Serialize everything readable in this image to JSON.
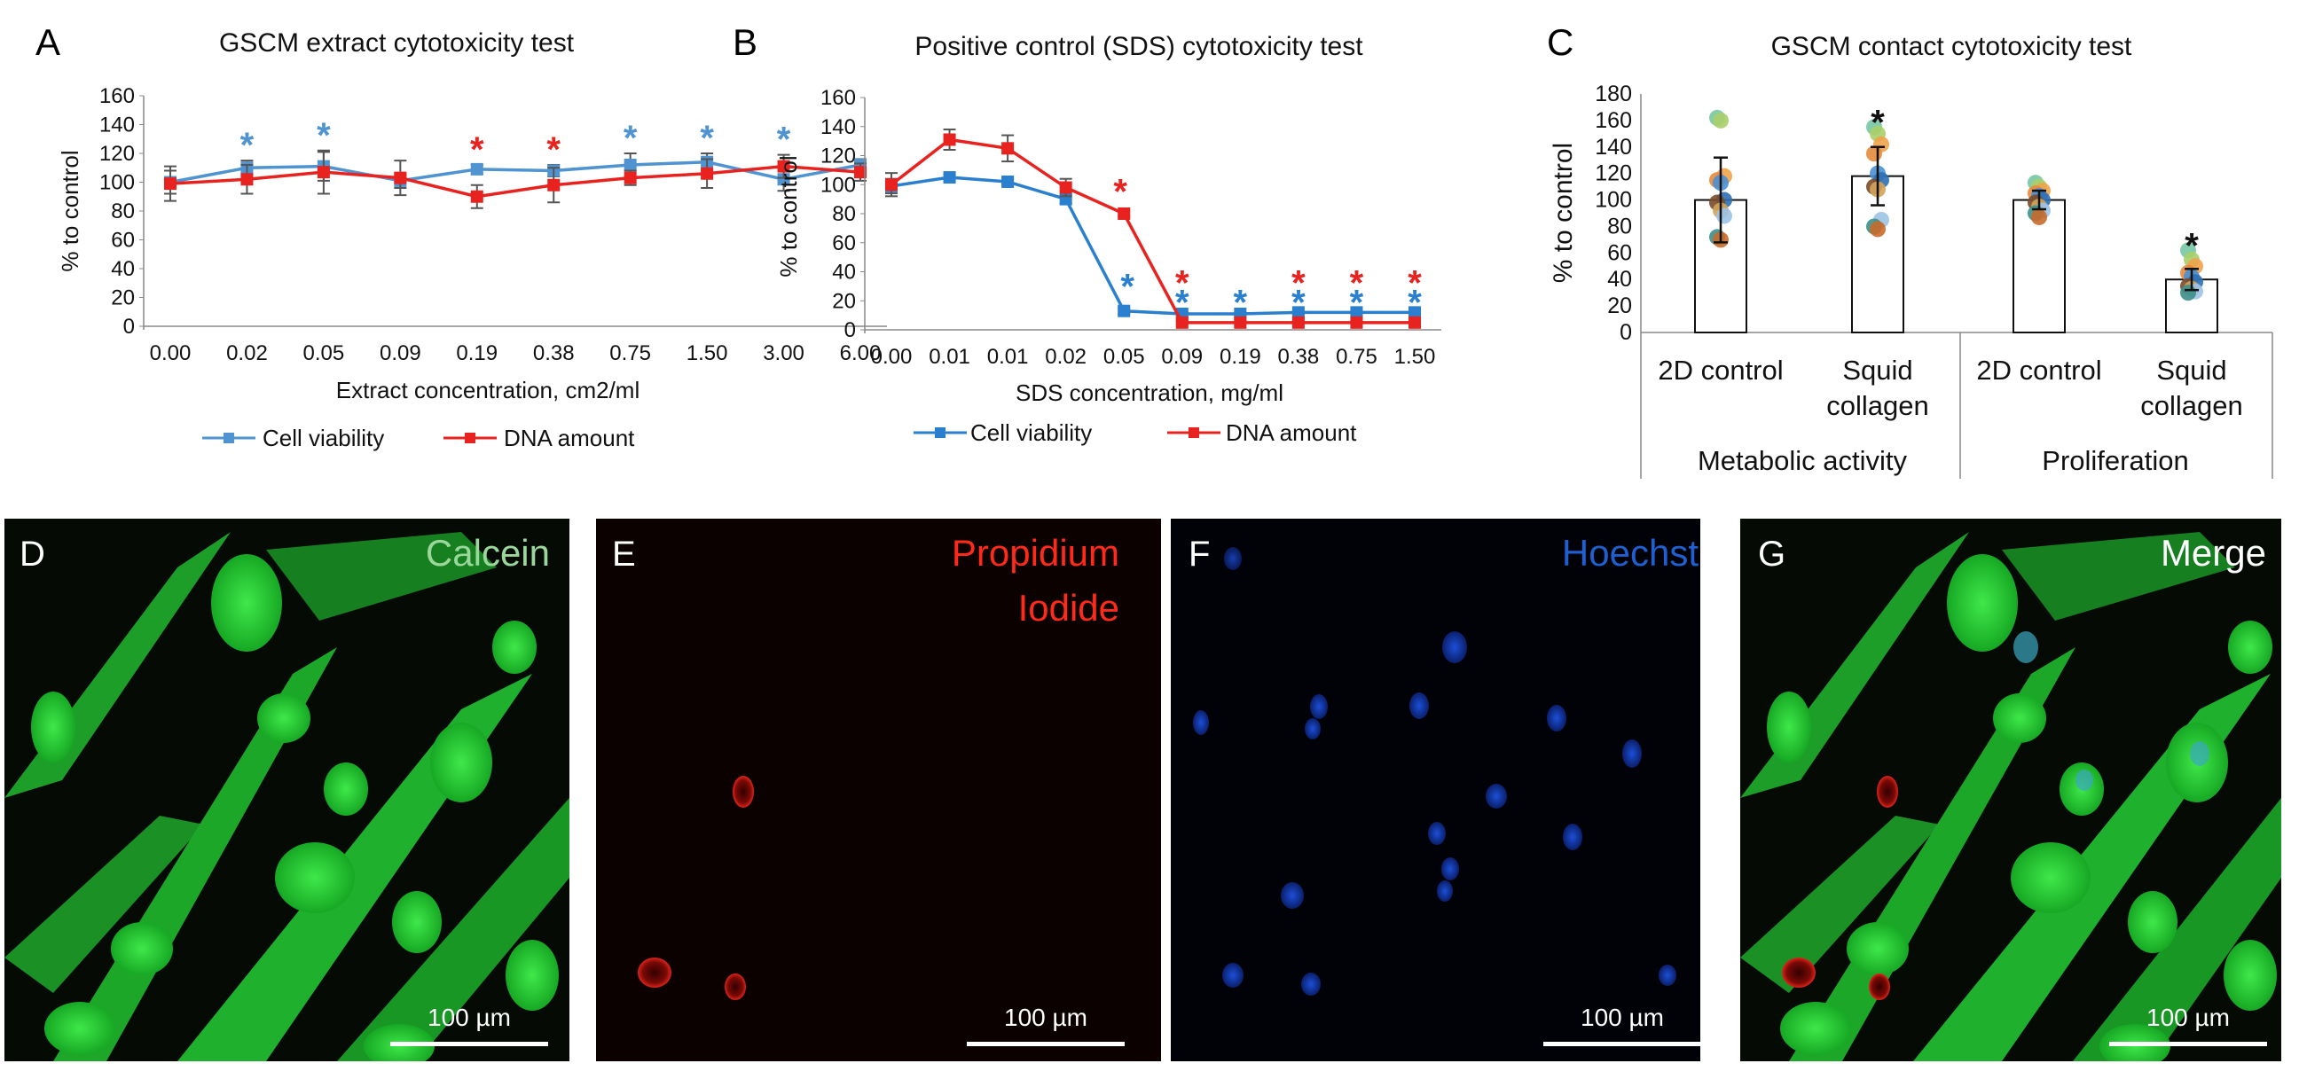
{
  "colors": {
    "cell_viability": "#4f93d1",
    "cell_viability_b": "#2a7fcf",
    "dna_amount": "#e8231f",
    "star_black": "#111111",
    "calcein": "#9bd79b",
    "propidium": "#ff2a1a",
    "hoechst": "#1f5fd0",
    "merge": "#ffffff"
  },
  "panels": {
    "A": {
      "letter": "A"
    },
    "B": {
      "letter": "B"
    },
    "C": {
      "letter": "C"
    },
    "D": {
      "letter": "D",
      "label": "Calcein",
      "scale_text": "100 µm"
    },
    "E": {
      "letter": "E",
      "label_lines": [
        "Propidium",
        "Iodide"
      ],
      "scale_text": "100 µm"
    },
    "F": {
      "letter": "F",
      "label": "Hoechst",
      "scale_text": "100 µm"
    },
    "G": {
      "letter": "G",
      "label": "Merge",
      "scale_text": "100 µm"
    }
  },
  "chart_data": [
    {
      "type": "line",
      "title": "GSCM extract cytotoxicity test",
      "xlabel": "Extract concentration, cm2/ml",
      "ylabel": "% to control",
      "ylim": [
        0,
        160
      ],
      "yticks": [
        "0",
        "20",
        "40",
        "60",
        "80",
        "100",
        "120",
        "140",
        "160"
      ],
      "categories": [
        "0.00",
        "0.02",
        "0.05",
        "0.09",
        "0.19",
        "0.38",
        "0.75",
        "1.50",
        "3.00",
        "6.00"
      ],
      "legend_position": "bottom",
      "series": [
        {
          "name": "Cell viability",
          "color": "#4f93d1",
          "marker": "square",
          "values": [
            100,
            110,
            111,
            101,
            109,
            108,
            112,
            114,
            102,
            112
          ],
          "errors": [
            8,
            5,
            10,
            5,
            3,
            4,
            8,
            6,
            8,
            4
          ],
          "significant": [
            false,
            true,
            true,
            false,
            false,
            false,
            true,
            true,
            true,
            false
          ]
        },
        {
          "name": "DNA amount",
          "color": "#e8231f",
          "marker": "square",
          "values": [
            99,
            102,
            107,
            103,
            90,
            98,
            103,
            106,
            111,
            107
          ],
          "errors": [
            12,
            10,
            15,
            12,
            8,
            12,
            5,
            10,
            8,
            6
          ],
          "significant": [
            false,
            false,
            false,
            false,
            true,
            true,
            false,
            false,
            false,
            false
          ]
        }
      ]
    },
    {
      "type": "line",
      "title": "Positive control (SDS) cytotoxicity test",
      "xlabel": "SDS concentration, mg/ml",
      "ylabel": "% to control",
      "ylim": [
        0,
        160
      ],
      "yticks": [
        "0",
        "20",
        "40",
        "60",
        "80",
        "100",
        "120",
        "140",
        "160"
      ],
      "categories": [
        "0.00",
        "0.01",
        "0.01",
        "0.02",
        "0.05",
        "0.09",
        "0.19",
        "0.38",
        "0.75",
        "1.50"
      ],
      "legend_position": "bottom",
      "series": [
        {
          "name": "Cell viability",
          "color": "#2a7fcf",
          "marker": "square",
          "values": [
            99,
            105,
            102,
            90,
            13,
            11,
            11,
            12,
            12,
            12
          ],
          "errors": [
            5,
            2,
            2,
            3,
            2,
            1,
            1,
            1,
            1,
            1
          ],
          "significant": [
            false,
            false,
            false,
            false,
            true,
            true,
            true,
            true,
            true,
            true
          ]
        },
        {
          "name": "DNA amount",
          "color": "#e8231f",
          "marker": "square",
          "values": [
            100,
            131,
            125,
            98,
            80,
            5,
            5,
            5,
            5,
            5
          ],
          "errors": [
            8,
            7,
            9,
            6,
            2,
            1,
            1,
            1,
            1,
            1
          ],
          "significant": [
            false,
            false,
            false,
            false,
            true,
            true,
            false,
            true,
            true,
            true
          ]
        }
      ]
    },
    {
      "type": "bar",
      "title": "GSCM contact cytotoxicity test",
      "ylabel": "% to control",
      "ylim": [
        0,
        180
      ],
      "yticks": [
        "0",
        "20",
        "40",
        "60",
        "80",
        "100",
        "120",
        "140",
        "160",
        "180"
      ],
      "categories": [
        {
          "lines": [
            "2D control"
          ],
          "group": "Metabolic activity"
        },
        {
          "lines": [
            "Squid",
            "collagen"
          ],
          "group": "Metabolic activity"
        },
        {
          "lines": [
            "2D control"
          ],
          "group": "Proliferation"
        },
        {
          "lines": [
            "Squid",
            "collagen"
          ],
          "group": "Proliferation"
        }
      ],
      "groups": [
        "Metabolic activity",
        "Proliferation"
      ],
      "values": [
        100,
        118,
        100,
        40
      ],
      "errors": [
        32,
        22,
        7,
        8
      ],
      "significant": [
        false,
        true,
        false,
        true
      ],
      "points": [
        [
          162,
          160,
          118,
          115,
          113,
          100,
          98,
          92,
          88,
          72,
          70
        ],
        [
          155,
          150,
          142,
          135,
          120,
          115,
          110,
          108,
          85,
          80,
          78
        ],
        [
          113,
          110,
          107,
          105,
          103,
          100,
          98,
          95,
          92,
          90,
          87
        ],
        [
          62,
          55,
          50,
          45,
          42,
          38,
          35,
          33,
          31,
          30
        ]
      ],
      "point_colors": [
        "#76c7a5",
        "#a9cf6a",
        "#f0a34a",
        "#e58a3b",
        "#4a8fd4",
        "#2e6fb3",
        "#7a4a2a",
        "#d4a45a",
        "#9cc3e5",
        "#3c8f8a",
        "#c86a2a"
      ]
    }
  ]
}
